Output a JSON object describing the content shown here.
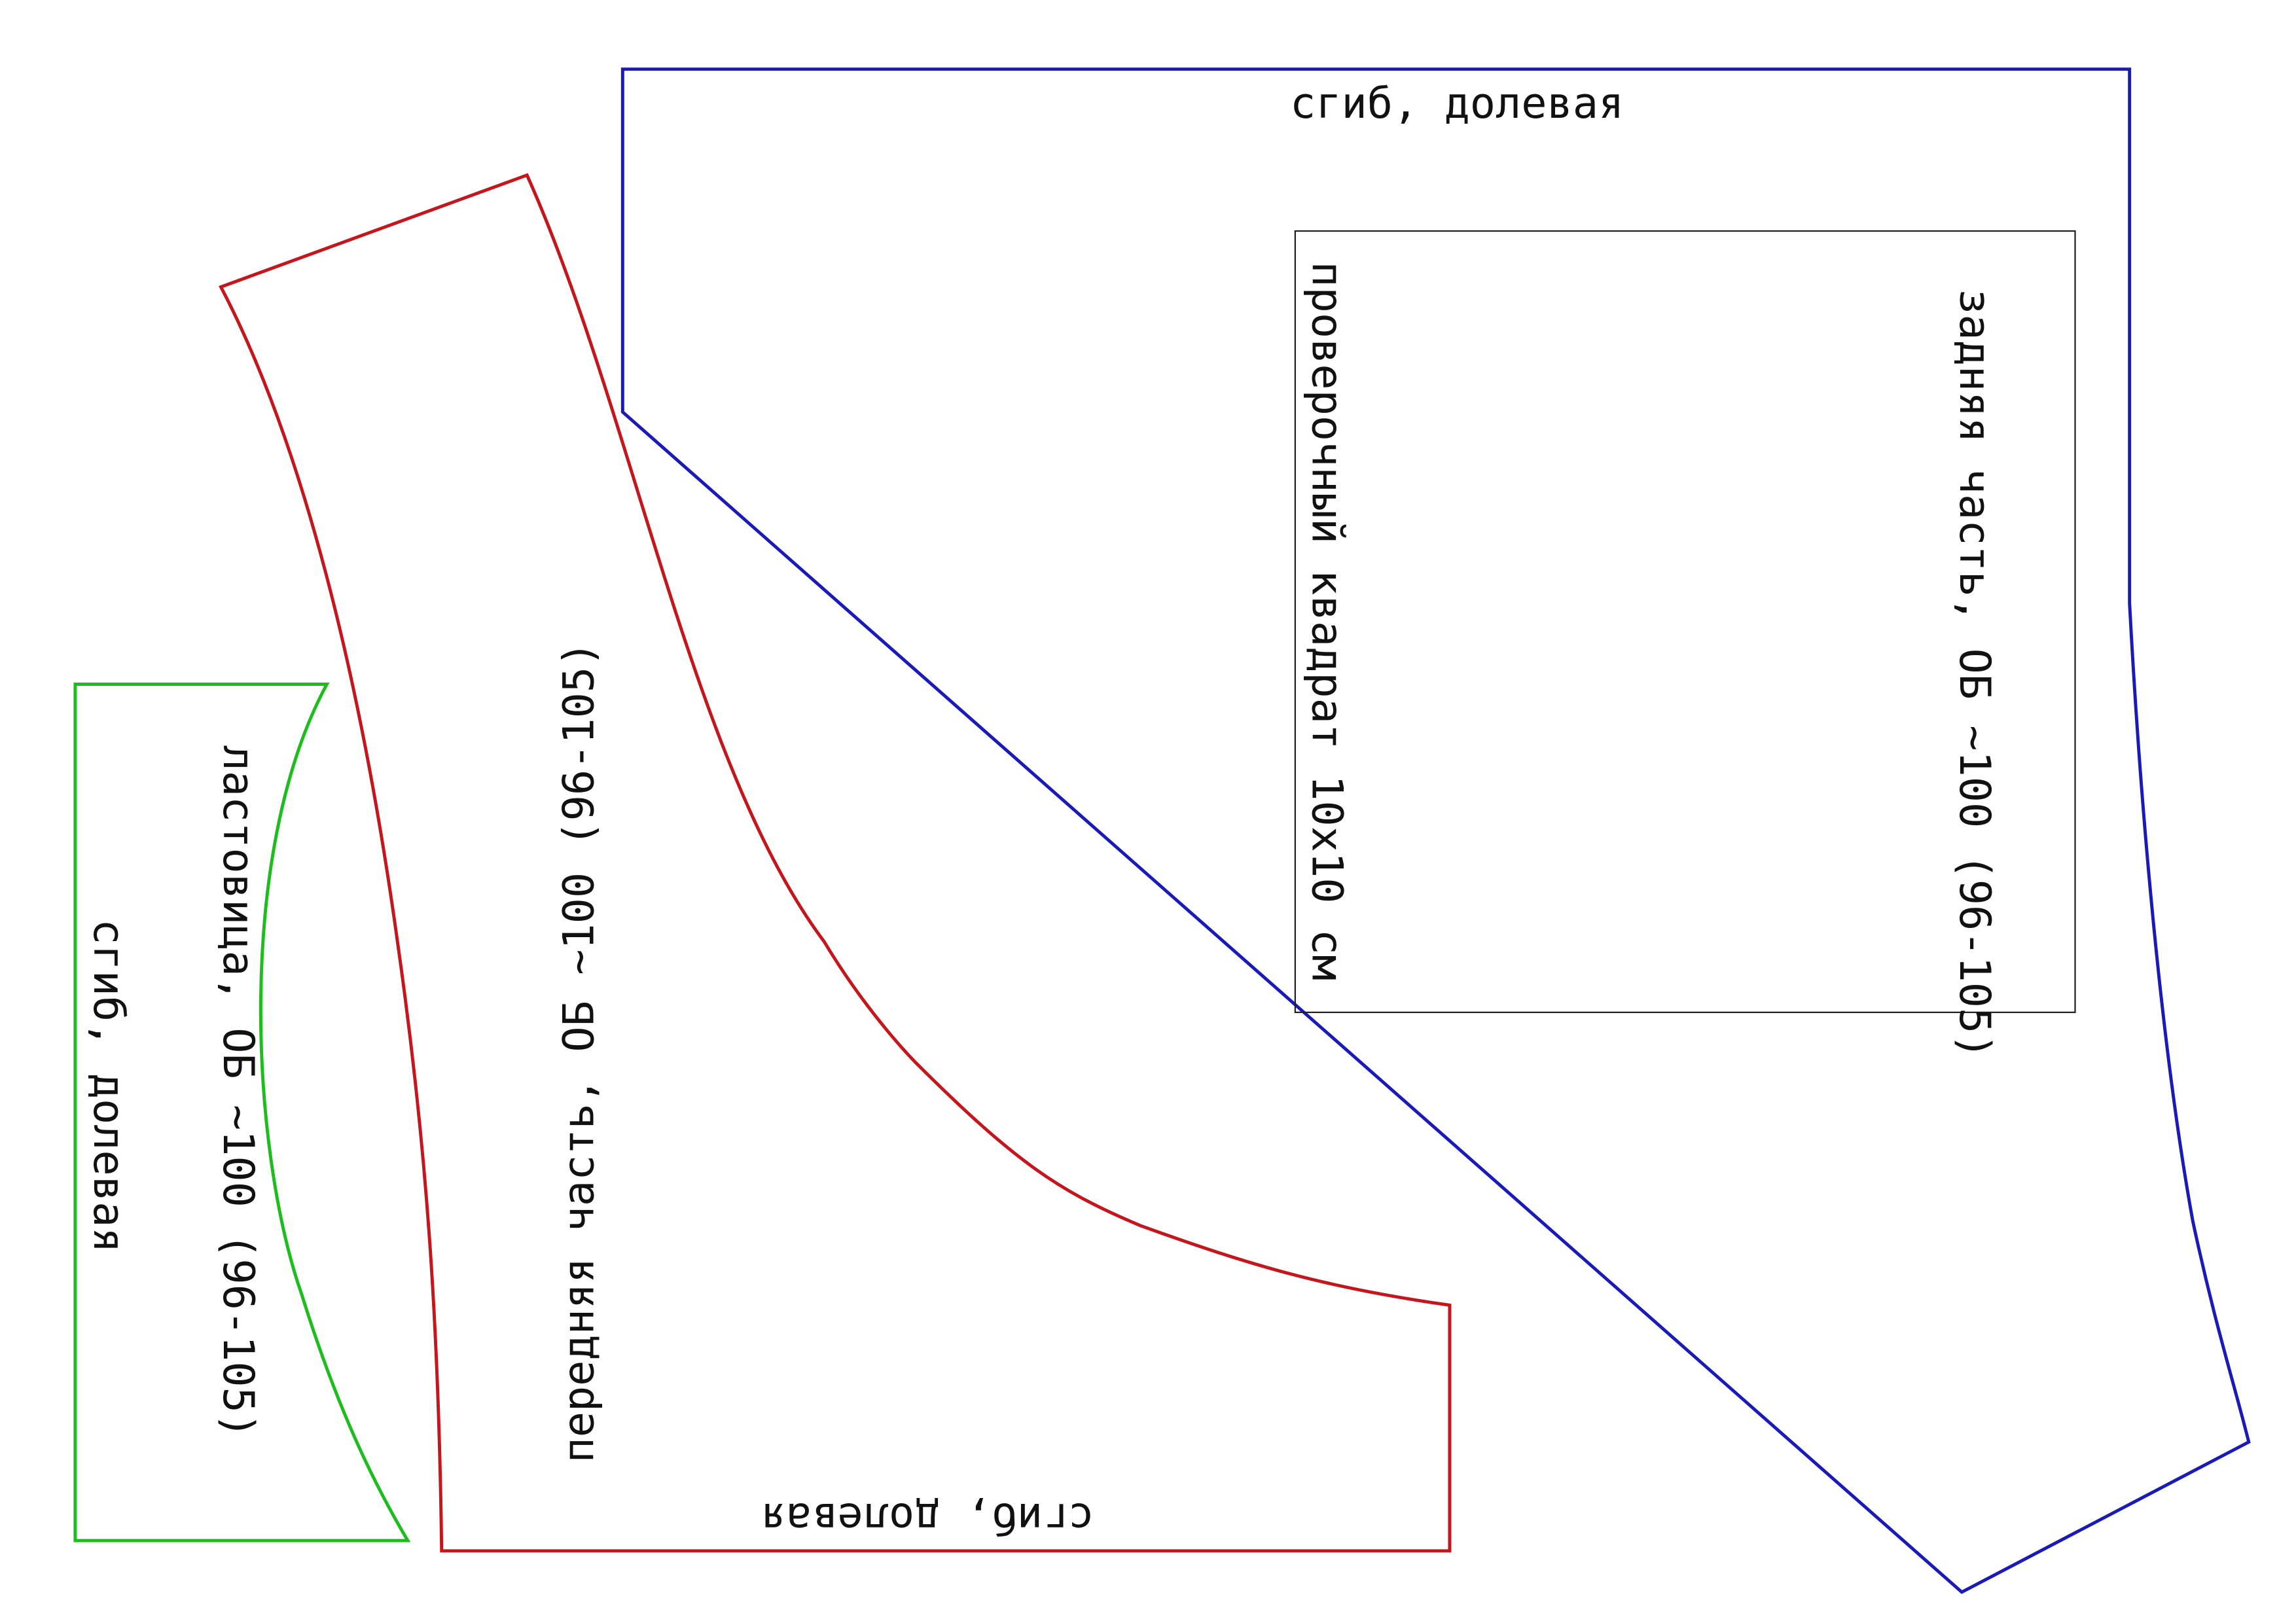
{
  "back_piece": {
    "fold_label": "сгиб, долевая",
    "label": "задняя часть, ОБ ~100 (96-105)"
  },
  "test_square": {
    "label": "проверочный квадрат 10х10 см"
  },
  "front_piece": {
    "label": "передняя часть, ОБ ~100 (96-105)",
    "fold_label": "сгиб, долевая"
  },
  "gusset_piece": {
    "label": "ластовица, ОБ ~100 (96-105)",
    "fold_label": "сгиб, долевая"
  }
}
